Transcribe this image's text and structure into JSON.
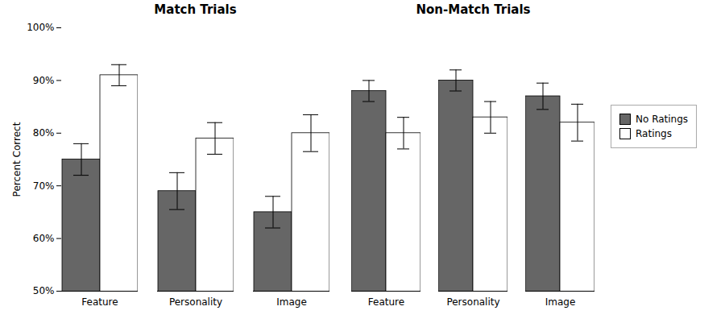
{
  "chart_data": [
    {
      "type": "bar",
      "title": "Match Trials",
      "categories": [
        "Feature",
        "Personality",
        "Image"
      ],
      "series": [
        {
          "name": "No Ratings",
          "color": "#666666",
          "values": [
            75,
            69,
            65
          ],
          "errors": [
            3,
            3.5,
            3
          ]
        },
        {
          "name": "Ratings",
          "color": "#ffffff",
          "values": [
            91,
            79,
            80
          ],
          "errors": [
            2,
            3,
            3.5
          ]
        }
      ],
      "ylabel": "Percent Correct",
      "ylim": [
        50,
        100
      ],
      "yticks": [
        {
          "value": 50,
          "label": "50%"
        },
        {
          "value": 60,
          "label": "60%"
        },
        {
          "value": 70,
          "label": "70%"
        },
        {
          "value": 80,
          "label": "80%"
        },
        {
          "value": 90,
          "label": "90%"
        },
        {
          "value": 100,
          "label": "100%"
        }
      ],
      "grid": false
    },
    {
      "type": "bar",
      "title": "Non-Match Trials",
      "categories": [
        "Feature",
        "Personality",
        "Image"
      ],
      "series": [
        {
          "name": "No Ratings",
          "color": "#666666",
          "values": [
            88,
            90,
            87
          ],
          "errors": [
            2,
            2,
            2.5
          ]
        },
        {
          "name": "Ratings",
          "color": "#ffffff",
          "values": [
            80,
            83,
            82
          ],
          "errors": [
            3,
            3,
            3.5
          ]
        }
      ],
      "ylim": [
        50,
        100
      ],
      "yticks": [
        {
          "value": 50,
          "label": "50%"
        },
        {
          "value": 60,
          "label": "60%"
        },
        {
          "value": 70,
          "label": "70%"
        },
        {
          "value": 80,
          "label": "80%"
        },
        {
          "value": 90,
          "label": "90%"
        },
        {
          "value": 100,
          "label": "100%"
        }
      ],
      "tick_labels": "x",
      "legend": "right",
      "grid": false
    }
  ]
}
